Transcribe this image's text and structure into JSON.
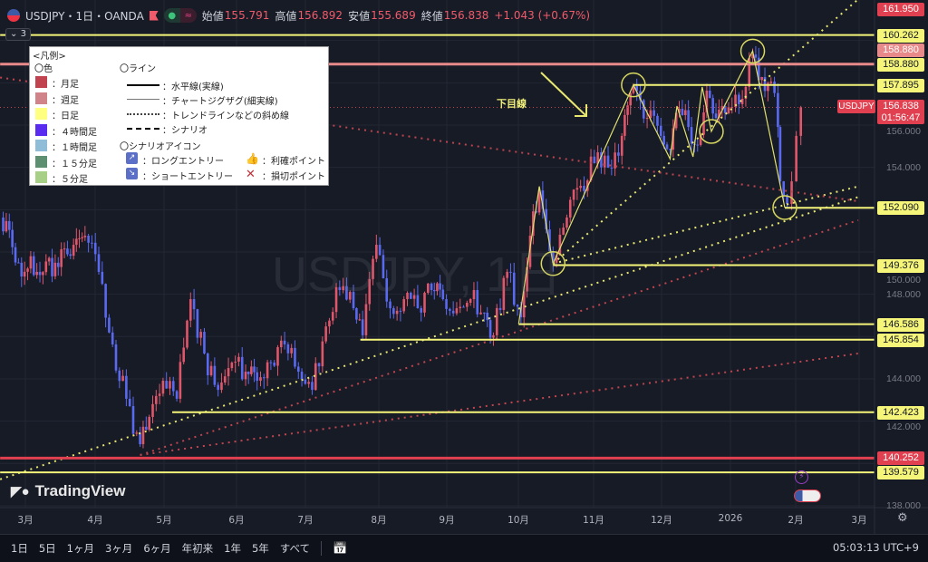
{
  "header": {
    "symbol": "USDJPY・1日・OANDA",
    "open_label": "始値",
    "open": "155.791",
    "high_label": "高値",
    "high": "156.892",
    "low_label": "安値",
    "low": "155.689",
    "close_label": "終値",
    "close": "156.838",
    "change": "+1.043 (+0.67%)",
    "collapse": "3"
  },
  "legend": {
    "title": "<凡例>",
    "colors_title": "〇色",
    "colors": [
      {
        "label": "：月足",
        "color": "#c0434f"
      },
      {
        "label": "：週足",
        "color": "#d0848a"
      },
      {
        "label": "：日足",
        "color": "#ffff80"
      },
      {
        "label": "：４時間足",
        "color": "#5a2cf0"
      },
      {
        "label": "：１時間足",
        "color": "#8fbcd6"
      },
      {
        "label": "：１５分足",
        "color": "#5e8f70"
      },
      {
        "label": "：５分足",
        "color": "#a8cf86"
      }
    ],
    "lines_title": "〇ライン",
    "lines": [
      {
        "label": "：水平線(実線)",
        "style": "solid-thick"
      },
      {
        "label": "：チャートジグザグ(細実線)",
        "style": "solid-thin"
      },
      {
        "label": "：トレンドラインなどの斜め線",
        "style": "dotted"
      },
      {
        "label": "：シナリオ",
        "style": "dashed"
      }
    ],
    "icons_title": "〇シナリオアイコン",
    "icons": [
      {
        "label": "：ロングエントリー",
        "icon": "arrow-up-right-icon"
      },
      {
        "label": "：ショートエントリー",
        "icon": "arrow-down-right-icon"
      },
      {
        "label": "：利確ポイント",
        "icon": "thumbs-up-icon"
      },
      {
        "label": "：損切ポイント",
        "icon": "cross-icon"
      }
    ]
  },
  "annotation": "下目線",
  "watermark": "USDJPY, 1日",
  "logo": "TradingView",
  "price_tag": {
    "symbol": "USDJPY",
    "price": "156.838",
    "countdown": "01:56:47"
  },
  "bottom_bar": {
    "ranges": [
      "1日",
      "5日",
      "1ヶ月",
      "3ヶ月",
      "6ヶ月",
      "年初来",
      "1年",
      "5年",
      "すべて"
    ],
    "clock": "05:03:13 UTC+9"
  },
  "colors": {
    "up": "#e0566a",
    "down": "#5a6af0",
    "yellow": "#f5f57a",
    "pink": "#e88a8a",
    "red": "#e0404f",
    "background": "#171b26"
  },
  "chart_data": {
    "type": "candlestick",
    "title": "",
    "ylim": [
      137.8,
      162.2
    ],
    "y_ticks": [
      "138.000",
      "142.000",
      "144.000",
      "148.000",
      "150.000",
      "154.000",
      "156.000"
    ],
    "x_ticks": [
      "3月",
      "4月",
      "5月",
      "6月",
      "7月",
      "8月",
      "9月",
      "10月",
      "11月",
      "12月",
      "2026",
      "2月",
      "3月"
    ],
    "grid": true,
    "closes": [
      [
        "2025-02-18",
        151.63
      ],
      [
        "2025-02-26",
        149.49
      ],
      [
        "2025-03-06",
        149.06
      ],
      [
        "2025-03-14",
        149.49
      ],
      [
        "2025-03-22",
        150.34
      ],
      [
        "2025-03-27",
        150.77
      ],
      [
        "2025-04-02",
        149.06
      ],
      [
        "2025-04-08",
        145.63
      ],
      [
        "2025-04-14",
        143.06
      ],
      [
        "2025-04-20",
        140.91
      ],
      [
        "2025-04-24",
        142.2
      ],
      [
        "2025-04-30",
        143.91
      ],
      [
        "2025-05-06",
        143.06
      ],
      [
        "2025-05-12",
        147.77
      ],
      [
        "2025-05-18",
        145.2
      ],
      [
        "2025-05-24",
        143.48
      ],
      [
        "2025-05-30",
        144.77
      ],
      [
        "2025-06-05",
        144.34
      ],
      [
        "2025-06-10",
        143.91
      ],
      [
        "2025-06-16",
        144.77
      ],
      [
        "2025-06-22",
        145.63
      ],
      [
        "2025-06-28",
        144.34
      ],
      [
        "2025-07-04",
        143.48
      ],
      [
        "2025-07-10",
        146.48
      ],
      [
        "2025-07-16",
        148.2
      ],
      [
        "2025-07-22",
        147.34
      ],
      [
        "2025-07-26",
        146.06
      ],
      [
        "2025-08-01",
        150.34
      ],
      [
        "2025-08-07",
        147.34
      ],
      [
        "2025-08-13",
        147.77
      ],
      [
        "2025-08-19",
        147.34
      ],
      [
        "2025-08-25",
        148.2
      ],
      [
        "2025-08-30",
        147.77
      ],
      [
        "2025-09-05",
        147.34
      ],
      [
        "2025-09-11",
        147.77
      ],
      [
        "2025-09-17",
        147.13
      ],
      [
        "2025-09-21",
        146.06
      ],
      [
        "2025-09-27",
        149.06
      ],
      [
        "2025-10-03",
        146.91
      ],
      [
        "2025-10-07",
        150.77
      ],
      [
        "2025-10-11",
        152.91
      ],
      [
        "2025-10-17",
        149.49
      ],
      [
        "2025-10-23",
        151.63
      ],
      [
        "2025-10-29",
        153.13
      ],
      [
        "2025-11-04",
        154.2
      ],
      [
        "2025-11-10",
        153.99
      ],
      [
        "2025-11-16",
        155.49
      ],
      [
        "2025-11-21",
        157.84
      ],
      [
        "2025-11-27",
        156.34
      ],
      [
        "2025-12-03",
        155.49
      ],
      [
        "2025-12-07",
        154.84
      ],
      [
        "2025-12-11",
        156.77
      ],
      [
        "2025-12-15",
        155.91
      ],
      [
        "2025-12-19",
        155.06
      ],
      [
        "2025-12-23",
        157.63
      ],
      [
        "2025-12-27",
        156.34
      ],
      [
        "2025-12-31",
        156.56
      ],
      [
        "2026-01-06",
        156.99
      ],
      [
        "2026-01-12",
        159.34
      ],
      [
        "2026-01-16",
        158.27
      ],
      [
        "2026-01-20",
        158.06
      ],
      [
        "2026-01-23",
        155.91
      ],
      [
        "2026-01-24",
        153.34
      ],
      [
        "2026-01-27",
        152.27
      ],
      [
        "2026-01-29",
        153.34
      ],
      [
        "2026-01-31",
        155.49
      ],
      [
        "2026-02-02",
        156.84
      ]
    ],
    "horizontal_lines": [
      {
        "price": 160.262,
        "label": "160.262",
        "color": "yellow",
        "from": "2025-02-18"
      },
      {
        "price": 158.88,
        "label": "158.880",
        "color": "pink",
        "from": "2025-02-18"
      },
      {
        "price": 157.895,
        "label": "157.895",
        "color": "yellow",
        "from": "2025-11-21"
      },
      {
        "price": 152.09,
        "label": "152.090",
        "color": "yellow",
        "from": "2026-01-26"
      },
      {
        "price": 149.376,
        "label": "149.376",
        "color": "yellow",
        "from": "2025-10-17"
      },
      {
        "price": 146.586,
        "label": "146.586",
        "color": "yellow",
        "from": "2025-10-02"
      },
      {
        "price": 145.854,
        "label": "145.854",
        "color": "yellow",
        "from": "2025-07-25"
      },
      {
        "price": 142.423,
        "label": "142.423",
        "color": "yellow",
        "from": "2025-05-04"
      },
      {
        "price": 140.252,
        "label": "140.252",
        "color": "red",
        "from": "2025-02-18"
      },
      {
        "price": 139.579,
        "label": "139.579",
        "color": "yellow",
        "from": "2025-02-18"
      }
    ],
    "extra_price_labels": [
      {
        "price": 161.95,
        "label": "161.950",
        "color": "red"
      },
      {
        "price": 158.88,
        "label": "158.880",
        "color": "pink"
      }
    ],
    "trendlines": [
      {
        "from": [
          "2025-10-17",
          149.45
        ],
        "to": [
          "2026-02-27",
          161.95
        ],
        "color": "yellow"
      },
      {
        "from": [
          "2025-02-18",
          139.25
        ],
        "to": [
          "2026-02-27",
          152.6
        ],
        "color": "yellow"
      },
      {
        "from": [
          "2025-10-17",
          149.45
        ],
        "to": [
          "2026-02-27",
          153.1
        ],
        "color": "yellow"
      },
      {
        "from": [
          "2025-02-18",
          158.25
        ],
        "to": [
          "2026-02-27",
          152.4
        ],
        "color": "red"
      },
      {
        "from": [
          "2025-04-20",
          140.4
        ],
        "to": [
          "2026-02-27",
          151.5
        ],
        "color": "red"
      },
      {
        "from": [
          "2025-04-20",
          140.4
        ],
        "to": [
          "2026-02-27",
          145.2
        ],
        "color": "red"
      }
    ],
    "zigzag": [
      [
        "2025-10-02",
        146.6
      ],
      [
        "2025-10-11",
        153.1
      ],
      [
        "2025-10-17",
        149.45
      ],
      [
        "2025-11-21",
        157.9
      ],
      [
        "2025-12-07",
        154.4
      ],
      [
        "2025-12-10",
        156.9
      ],
      [
        "2025-12-17",
        154.5
      ],
      [
        "2025-12-21",
        157.8
      ],
      [
        "2025-12-25",
        155.7
      ],
      [
        "2026-01-12",
        159.5
      ],
      [
        "2026-01-26",
        152.1
      ]
    ],
    "circles": [
      [
        "2025-10-17",
        149.45
      ],
      [
        "2025-11-21",
        157.9
      ],
      [
        "2025-12-25",
        155.7
      ],
      [
        "2026-01-12",
        159.5
      ],
      [
        "2026-01-26",
        152.1
      ]
    ]
  }
}
